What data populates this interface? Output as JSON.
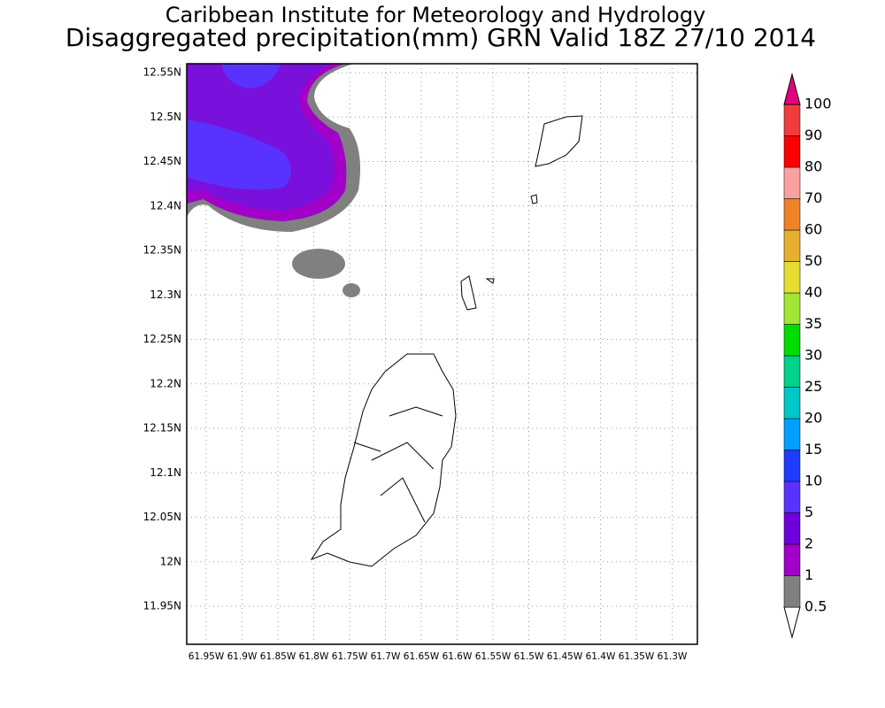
{
  "title": [
    "Caribbean Institute for Meteorology and Hydrology",
    "Disaggregated precipitation(mm) GRN Valid 18Z 27/10 2014"
  ],
  "lat_labels": [
    "12.55N",
    "12.5N",
    "12.45N",
    "12.4N",
    "12.35N",
    "12.3N",
    "12.25N",
    "12.2N",
    "12.15N",
    "12.1N",
    "12.05N",
    "12N",
    "11.95N"
  ],
  "lon_labels": [
    "61.95W",
    "61.9W",
    "61.85W",
    "61.8W",
    "61.75W",
    "61.7W",
    "61.65W",
    "61.6W",
    "61.55W",
    "61.5W",
    "61.45W",
    "61.4W",
    "61.35W",
    "61.3W"
  ],
  "colorbar": {
    "labels": [
      0.5,
      1,
      2,
      5,
      10,
      15,
      20,
      25,
      30,
      35,
      40,
      50,
      60,
      70,
      80,
      90,
      100
    ],
    "colors": [
      "#ffffff",
      "#808080",
      "#a000c8",
      "#6e00dc",
      "#5a32ff",
      "#1e3cff",
      "#00a0ff",
      "#00c8c8",
      "#00d28c",
      "#00dc00",
      "#a0e632",
      "#e6dc32",
      "#e6af2d",
      "#f08228",
      "#faa0a0",
      "#ff0000",
      "#f03c3c",
      "#e6007d"
    ]
  }
}
